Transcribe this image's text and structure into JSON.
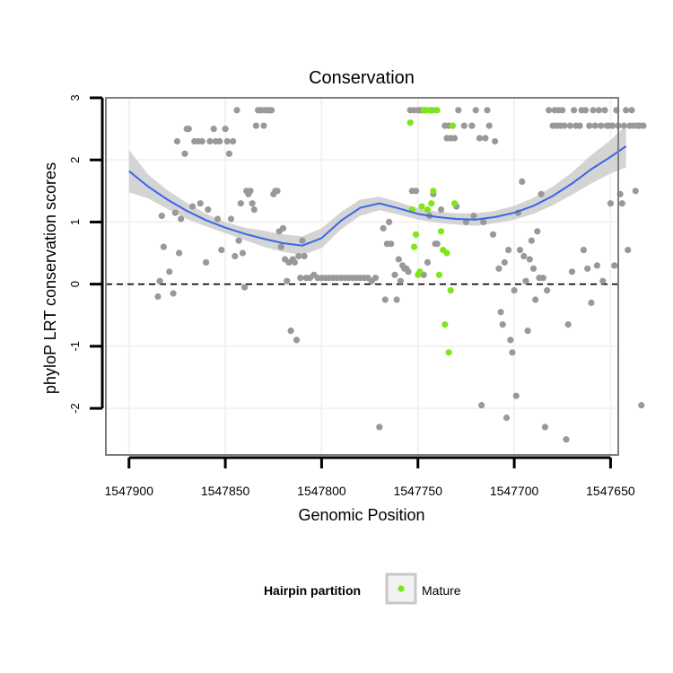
{
  "chart_data": {
    "type": "scatter",
    "title": "Conservation",
    "xlabel": "Genomic Position",
    "ylabel": "phyloP LRT conservation scores",
    "xlim": [
      1547912,
      1547646
    ],
    "ylim": [
      -2.75,
      3
    ],
    "x_reversed": true,
    "grid": true,
    "x_ticks": [
      1547900,
      1547850,
      1547800,
      1547750,
      1547700,
      1547650
    ],
    "x_tick_labels": [
      "1547900",
      "1547850",
      "1547800",
      "1547750",
      "1547700",
      "1547650"
    ],
    "y_ticks": [
      -2,
      -1,
      0,
      1,
      2,
      3
    ],
    "y_tick_labels": [
      "-2",
      "-1",
      "0",
      "1",
      "2",
      "3"
    ],
    "reference_line": {
      "y": 0,
      "style": "dashed"
    },
    "legend": {
      "title": "Hairpin partition",
      "placement": "bottom",
      "entries": [
        "Mature"
      ]
    },
    "colors": {
      "other": "#999999",
      "mature": "#7fe619",
      "smooth": "#3a66e6",
      "band": "#cccccc",
      "panel_border": "#7f7f7f",
      "grid": "#f2f2f2"
    },
    "series": [
      {
        "name": "",
        "color": "#999999",
        "points": [
          [
            1547885,
            -0.2
          ],
          [
            1547884,
            0.05
          ],
          [
            1547883,
            1.1
          ],
          [
            1547882,
            0.6
          ],
          [
            1547879,
            0.2
          ],
          [
            1547877,
            -0.15
          ],
          [
            1547876,
            1.15
          ],
          [
            1547875,
            2.3
          ],
          [
            1547874,
            0.5
          ],
          [
            1547873,
            1.05
          ],
          [
            1547871,
            2.1
          ],
          [
            1547870,
            2.5
          ],
          [
            1547869,
            2.5
          ],
          [
            1547867,
            1.25
          ],
          [
            1547866,
            2.3
          ],
          [
            1547864,
            2.3
          ],
          [
            1547863,
            1.3
          ],
          [
            1547862,
            2.3
          ],
          [
            1547860,
            0.35
          ],
          [
            1547859,
            1.2
          ],
          [
            1547858,
            2.3
          ],
          [
            1547856,
            2.5
          ],
          [
            1547855,
            2.3
          ],
          [
            1547854,
            1.05
          ],
          [
            1547853,
            2.3
          ],
          [
            1547852,
            0.55
          ],
          [
            1547850,
            2.5
          ],
          [
            1547849,
            2.3
          ],
          [
            1547848,
            2.1
          ],
          [
            1547847,
            1.05
          ],
          [
            1547846,
            2.3
          ],
          [
            1547845,
            0.45
          ],
          [
            1547844,
            2.8
          ],
          [
            1547843,
            0.7
          ],
          [
            1547842,
            1.3
          ],
          [
            1547841,
            0.5
          ],
          [
            1547840,
            -0.05
          ],
          [
            1547839,
            1.5
          ],
          [
            1547838,
            1.45
          ],
          [
            1547837,
            1.5
          ],
          [
            1547836,
            1.3
          ],
          [
            1547835,
            1.2
          ],
          [
            1547834,
            2.55
          ],
          [
            1547833,
            2.8
          ],
          [
            1547832,
            2.8
          ],
          [
            1547831,
            2.8
          ],
          [
            1547830,
            2.55
          ],
          [
            1547829,
            2.8
          ],
          [
            1547828,
            2.8
          ],
          [
            1547827,
            2.8
          ],
          [
            1547826,
            2.8
          ],
          [
            1547825,
            1.45
          ],
          [
            1547824,
            1.5
          ],
          [
            1547823,
            1.5
          ],
          [
            1547822,
            0.85
          ],
          [
            1547821,
            0.6
          ],
          [
            1547820,
            0.9
          ],
          [
            1547819,
            0.4
          ],
          [
            1547818,
            0.05
          ],
          [
            1547817,
            0.35
          ],
          [
            1547816,
            -0.75
          ],
          [
            1547815,
            0.4
          ],
          [
            1547814,
            0.35
          ],
          [
            1547813,
            -0.9
          ],
          [
            1547812,
            0.45
          ],
          [
            1547811,
            0.1
          ],
          [
            1547810,
            0.7
          ],
          [
            1547809,
            0.45
          ],
          [
            1547808,
            0.1
          ],
          [
            1547806,
            0.1
          ],
          [
            1547804,
            0.15
          ],
          [
            1547802,
            0.1
          ],
          [
            1547800,
            0.1
          ],
          [
            1547798,
            0.1
          ],
          [
            1547796,
            0.1
          ],
          [
            1547794,
            0.1
          ],
          [
            1547792,
            0.1
          ],
          [
            1547790,
            0.1
          ],
          [
            1547788,
            0.1
          ],
          [
            1547786,
            0.1
          ],
          [
            1547784,
            0.1
          ],
          [
            1547782,
            0.1
          ],
          [
            1547780,
            0.1
          ],
          [
            1547778,
            0.1
          ],
          [
            1547776,
            0.1
          ],
          [
            1547774,
            0.05
          ],
          [
            1547772,
            0.1
          ],
          [
            1547770,
            -2.3
          ],
          [
            1547768,
            0.9
          ],
          [
            1547767,
            -0.25
          ],
          [
            1547766,
            0.65
          ],
          [
            1547765,
            1.0
          ],
          [
            1547764,
            0.65
          ],
          [
            1547762,
            0.15
          ],
          [
            1547761,
            -0.25
          ],
          [
            1547760,
            0.4
          ],
          [
            1547759,
            0.05
          ],
          [
            1547758,
            0.3
          ],
          [
            1547757,
            0.25
          ],
          [
            1547756,
            0.25
          ],
          [
            1547755,
            0.2
          ],
          [
            1547754,
            2.8
          ],
          [
            1547753,
            1.5
          ],
          [
            1547752,
            2.8
          ],
          [
            1547751,
            1.5
          ],
          [
            1547750,
            2.8
          ],
          [
            1547749,
            2.8
          ],
          [
            1547748,
            2.8
          ],
          [
            1547747,
            0.15
          ],
          [
            1547746,
            2.8
          ],
          [
            1547745,
            0.35
          ],
          [
            1547744,
            1.1
          ],
          [
            1547743,
            2.8
          ],
          [
            1547742,
            1.45
          ],
          [
            1547741,
            0.65
          ],
          [
            1547740,
            0.65
          ],
          [
            1547738,
            1.2
          ],
          [
            1547736,
            2.55
          ],
          [
            1547735,
            2.35
          ],
          [
            1547734,
            2.55
          ],
          [
            1547733,
            2.35
          ],
          [
            1547732,
            2.55
          ],
          [
            1547731,
            2.35
          ],
          [
            1547730,
            1.25
          ],
          [
            1547729,
            2.8
          ],
          [
            1547726,
            2.55
          ],
          [
            1547725,
            1.0
          ],
          [
            1547722,
            2.55
          ],
          [
            1547721,
            1.1
          ],
          [
            1547720,
            2.8
          ],
          [
            1547718,
            2.35
          ],
          [
            1547717,
            -1.95
          ],
          [
            1547716,
            1.0
          ],
          [
            1547715,
            2.35
          ],
          [
            1547714,
            2.8
          ],
          [
            1547713,
            2.55
          ],
          [
            1547711,
            0.8
          ],
          [
            1547710,
            2.3
          ],
          [
            1547708,
            0.25
          ],
          [
            1547707,
            -0.45
          ],
          [
            1547706,
            -0.65
          ],
          [
            1547705,
            0.35
          ],
          [
            1547704,
            -2.15
          ],
          [
            1547703,
            0.55
          ],
          [
            1547702,
            -0.9
          ],
          [
            1547701,
            -1.1
          ],
          [
            1547700,
            -0.1
          ],
          [
            1547699,
            -1.8
          ],
          [
            1547698,
            1.15
          ],
          [
            1547697,
            0.55
          ],
          [
            1547696,
            1.65
          ],
          [
            1547695,
            0.45
          ],
          [
            1547694,
            0.05
          ],
          [
            1547693,
            -0.75
          ],
          [
            1547692,
            0.4
          ],
          [
            1547691,
            0.7
          ],
          [
            1547690,
            0.25
          ],
          [
            1547689,
            -0.25
          ],
          [
            1547688,
            0.85
          ],
          [
            1547687,
            0.1
          ],
          [
            1547686,
            1.45
          ],
          [
            1547685,
            0.1
          ],
          [
            1547684,
            -2.3
          ],
          [
            1547683,
            -0.1
          ],
          [
            1547682,
            2.8
          ],
          [
            1547680,
            2.55
          ],
          [
            1547679,
            2.8
          ],
          [
            1547678,
            2.55
          ],
          [
            1547677,
            2.8
          ],
          [
            1547676,
            2.55
          ],
          [
            1547675,
            2.8
          ],
          [
            1547674,
            2.55
          ],
          [
            1547673,
            -2.5
          ],
          [
            1547672,
            -0.65
          ],
          [
            1547671,
            2.55
          ],
          [
            1547670,
            0.2
          ],
          [
            1547669,
            2.8
          ],
          [
            1547668,
            2.55
          ],
          [
            1547666,
            2.55
          ],
          [
            1547665,
            2.8
          ],
          [
            1547664,
            0.55
          ],
          [
            1547663,
            2.8
          ],
          [
            1547662,
            0.25
          ],
          [
            1547661,
            2.55
          ],
          [
            1547660,
            -0.3
          ],
          [
            1547659,
            2.8
          ],
          [
            1547658,
            2.55
          ],
          [
            1547657,
            0.3
          ],
          [
            1547656,
            2.8
          ],
          [
            1547655,
            2.55
          ],
          [
            1547654,
            0.05
          ],
          [
            1547653,
            2.8
          ],
          [
            1547652,
            2.55
          ],
          [
            1547651,
            2.55
          ],
          [
            1547650,
            1.3
          ],
          [
            1547649,
            2.55
          ],
          [
            1547648,
            0.3
          ],
          [
            1547647,
            2.8
          ],
          [
            1547646,
            2.55
          ],
          [
            1547645,
            1.45
          ],
          [
            1547644,
            1.3
          ],
          [
            1547643,
            2.55
          ],
          [
            1547642,
            2.8
          ],
          [
            1547641,
            0.55
          ],
          [
            1547640,
            2.55
          ],
          [
            1547639,
            2.8
          ],
          [
            1547638,
            2.55
          ],
          [
            1547637,
            1.5
          ],
          [
            1547636,
            2.55
          ],
          [
            1547635,
            2.55
          ],
          [
            1547634,
            -1.95
          ],
          [
            1547633,
            2.55
          ]
        ]
      },
      {
        "name": "Mature",
        "color": "#7fe619",
        "points": [
          [
            1547754,
            2.6
          ],
          [
            1547753,
            1.2
          ],
          [
            1547752,
            0.6
          ],
          [
            1547751,
            0.8
          ],
          [
            1547750,
            0.15
          ],
          [
            1547749,
            0.2
          ],
          [
            1547748,
            1.25
          ],
          [
            1547747,
            2.8
          ],
          [
            1547746,
            2.8
          ],
          [
            1547745,
            1.2
          ],
          [
            1547744,
            2.8
          ],
          [
            1547743,
            1.3
          ],
          [
            1547742,
            1.5
          ],
          [
            1547741,
            2.8
          ],
          [
            1547740,
            2.8
          ],
          [
            1547739,
            0.15
          ],
          [
            1547738,
            0.85
          ],
          [
            1547737,
            0.55
          ],
          [
            1547736,
            -0.65
          ],
          [
            1547735,
            0.5
          ],
          [
            1547734,
            -1.1
          ],
          [
            1547733,
            -0.1
          ],
          [
            1547732,
            2.55
          ],
          [
            1547731,
            1.3
          ]
        ]
      }
    ],
    "smooth_line": {
      "x": [
        1547900,
        1547890,
        1547880,
        1547870,
        1547860,
        1547850,
        1547840,
        1547830,
        1547820,
        1547810,
        1547800,
        1547790,
        1547780,
        1547770,
        1547760,
        1547750,
        1547740,
        1547730,
        1547720,
        1547710,
        1547700,
        1547690,
        1547680,
        1547670,
        1547660,
        1547650,
        1547642
      ],
      "y": [
        1.82,
        1.57,
        1.36,
        1.18,
        1.03,
        0.91,
        0.81,
        0.73,
        0.66,
        0.62,
        0.74,
        1.02,
        1.23,
        1.3,
        1.22,
        1.13,
        1.08,
        1.05,
        1.04,
        1.08,
        1.15,
        1.26,
        1.42,
        1.62,
        1.85,
        2.05,
        2.22
      ],
      "lower": [
        1.48,
        1.38,
        1.21,
        1.05,
        0.93,
        0.82,
        0.71,
        0.6,
        0.52,
        0.47,
        0.58,
        0.88,
        1.1,
        1.19,
        1.12,
        1.04,
        0.99,
        0.96,
        0.94,
        0.98,
        1.04,
        1.13,
        1.27,
        1.44,
        1.62,
        1.78,
        1.88
      ],
      "upper": [
        2.16,
        1.76,
        1.51,
        1.31,
        1.13,
        1.0,
        0.91,
        0.86,
        0.8,
        0.77,
        0.9,
        1.16,
        1.36,
        1.41,
        1.32,
        1.22,
        1.17,
        1.14,
        1.14,
        1.18,
        1.26,
        1.39,
        1.57,
        1.8,
        2.08,
        2.32,
        2.56
      ]
    }
  }
}
